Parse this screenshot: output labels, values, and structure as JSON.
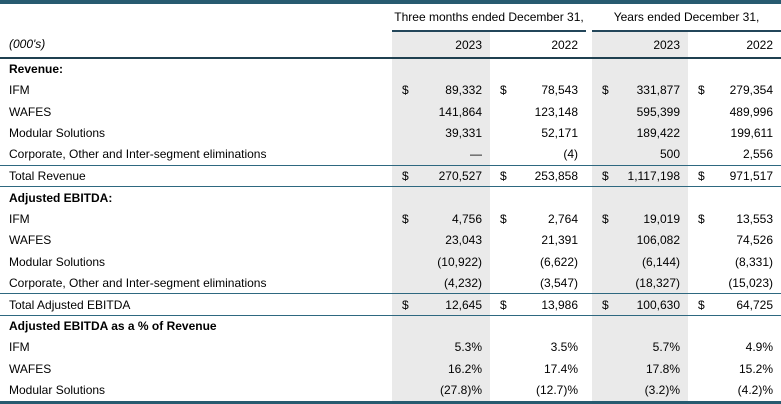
{
  "colors": {
    "accent_teal": "#275b70",
    "rule_teal": "#2e6880",
    "header_rule": "#1f4050",
    "shade_gray": "#eaeaea"
  },
  "table": {
    "units_label": "(000's)",
    "col_groups": [
      {
        "label": "Three months ended December 31,"
      },
      {
        "label": "Years ended December 31,"
      }
    ],
    "year_headers": [
      "2023",
      "2022",
      "2023",
      "2022"
    ],
    "rows": [
      {
        "type": "section",
        "label": "Revenue:",
        "dollar": false,
        "values": null
      },
      {
        "type": "data",
        "label": "IFM",
        "dollar": true,
        "values": [
          "89,332",
          "78,543",
          "331,877",
          "279,354"
        ]
      },
      {
        "type": "data",
        "label": "WAFES",
        "dollar": false,
        "values": [
          "141,864",
          "123,148",
          "595,399",
          "489,996"
        ]
      },
      {
        "type": "data",
        "label": "Modular Solutions",
        "dollar": false,
        "values": [
          "39,331",
          "52,171",
          "189,422",
          "199,611"
        ]
      },
      {
        "type": "data",
        "label": "Corporate, Other and Inter-segment eliminations",
        "dollar": false,
        "values": [
          "—",
          "(4)",
          "500",
          "2,556"
        ]
      },
      {
        "type": "total",
        "label": "Total Revenue",
        "dollar": true,
        "values": [
          "270,527",
          "253,858",
          "1,117,198",
          "971,517"
        ]
      },
      {
        "type": "section",
        "label": "Adjusted EBITDA:",
        "dollar": false,
        "values": null
      },
      {
        "type": "data",
        "label": "IFM",
        "dollar": true,
        "values": [
          "4,756",
          "2,764",
          "19,019",
          "13,553"
        ]
      },
      {
        "type": "data",
        "label": "WAFES",
        "dollar": false,
        "values": [
          "23,043",
          "21,391",
          "106,082",
          "74,526"
        ]
      },
      {
        "type": "data",
        "label": "Modular Solutions",
        "dollar": false,
        "values": [
          "(10,922)",
          "(6,622)",
          "(6,144)",
          "(8,331)"
        ]
      },
      {
        "type": "data",
        "label": "Corporate, Other and Inter-segment eliminations",
        "dollar": false,
        "values": [
          "(4,232)",
          "(3,547)",
          "(18,327)",
          "(15,023)"
        ]
      },
      {
        "type": "total",
        "label": "Total Adjusted EBITDA",
        "dollar": true,
        "values": [
          "12,645",
          "13,986",
          "100,630",
          "64,725"
        ]
      },
      {
        "type": "section",
        "label": "Adjusted EBITDA as a % of Revenue",
        "dollar": false,
        "values": null
      },
      {
        "type": "data",
        "label": "IFM",
        "dollar": false,
        "values": [
          "5.3%",
          "3.5%",
          "5.7%",
          "4.9%"
        ]
      },
      {
        "type": "data",
        "label": "WAFES",
        "dollar": false,
        "values": [
          "16.2%",
          "17.4%",
          "17.8%",
          "15.2%"
        ]
      },
      {
        "type": "data",
        "label": "Modular Solutions",
        "dollar": false,
        "values": [
          "(27.8)%",
          "(12.7)%",
          "(3.2)%",
          "(4.2)%"
        ]
      }
    ]
  }
}
